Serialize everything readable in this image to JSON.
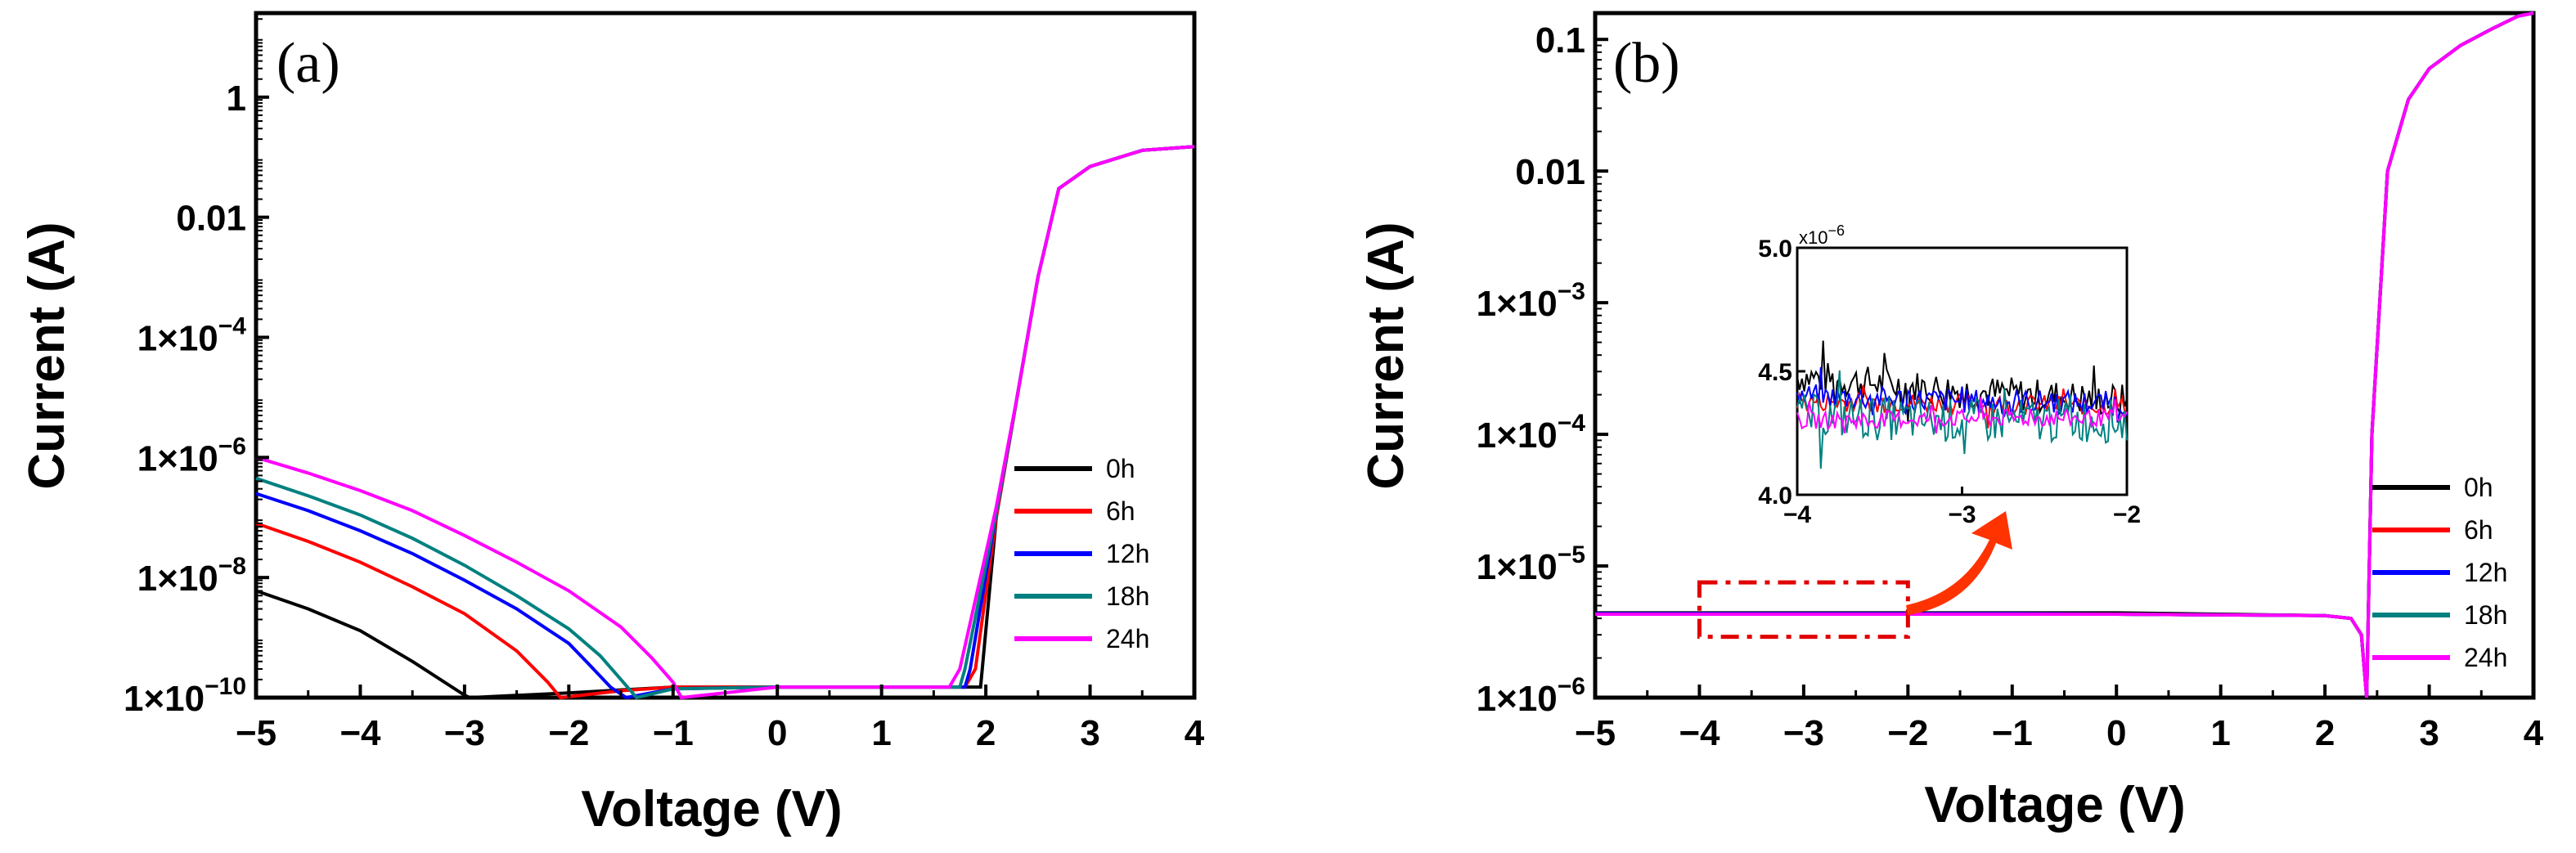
{
  "figure": {
    "panels": [
      {
        "id": "a",
        "label": "(a)"
      },
      {
        "id": "b",
        "label": "(b)"
      }
    ]
  },
  "colors": {
    "0h": "#000000",
    "6h": "#ff0000",
    "12h": "#0000ff",
    "18h": "#008080",
    "24h": "#ff00ff",
    "highlight_box": "#e00000",
    "arrow": "#ff3300"
  },
  "chart_data": [
    {
      "panel": "a",
      "type": "line",
      "title": "(a)",
      "xlabel": "Voltage (V)",
      "ylabel": "Current (A)",
      "xlim": [
        -5,
        4
      ],
      "ylim_log10": [
        -10,
        1.4
      ],
      "y_scale": "log",
      "x_ticks": [
        -5,
        -4,
        -3,
        -2,
        -1,
        0,
        1,
        2,
        3,
        4
      ],
      "x_tick_labels": [
        "−5",
        "−4",
        "−3",
        "−2",
        "−1",
        "0",
        "1",
        "2",
        "3",
        "4"
      ],
      "y_ticks_log10": [
        -10,
        -8,
        -6,
        -4,
        -2,
        0
      ],
      "y_tick_labels": [
        {
          "base": "1×10",
          "exp": "−10"
        },
        {
          "base": "1×10",
          "exp": "−8"
        },
        {
          "base": "1×10",
          "exp": "−6"
        },
        {
          "base": "1×10",
          "exp": "−4"
        },
        {
          "plain": "0.01"
        },
        {
          "plain": "1"
        }
      ],
      "legend": {
        "placement": "bottom-right",
        "entries": [
          "0h",
          "6h",
          "12h",
          "18h",
          "24h"
        ]
      },
      "series": [
        {
          "name": "0h",
          "x": [
            -5,
            -4.5,
            -4,
            -3.5,
            -3,
            -2.95,
            -2,
            -1,
            0,
            1,
            1.8,
            1.95,
            2.1,
            2.3,
            2.5,
            2.7,
            3.0,
            3.5,
            4.0
          ],
          "y": [
            6e-09,
            3e-09,
            1.3e-09,
            4e-10,
            1.1e-10,
            1e-10,
            1.2e-10,
            1.5e-10,
            1.5e-10,
            1.5e-10,
            1.5e-10,
            1.5e-10,
            1e-07,
            1e-05,
            0.001,
            0.03,
            0.07,
            0.13,
            0.15
          ]
        },
        {
          "name": "6h",
          "x": [
            -5,
            -4.5,
            -4,
            -3.5,
            -3,
            -2.5,
            -2.2,
            -2.08,
            -1.5,
            -1,
            0,
            1,
            1.8,
            1.9,
            2.1,
            2.3,
            2.5,
            2.7,
            3.0,
            3.5,
            4.0
          ],
          "y": [
            8e-08,
            4e-08,
            1.8e-08,
            7e-09,
            2.5e-09,
            6e-10,
            1.8e-10,
            1e-10,
            1.3e-10,
            1.5e-10,
            1.5e-10,
            1.5e-10,
            1.5e-10,
            3e-10,
            1e-07,
            1e-05,
            0.001,
            0.03,
            0.07,
            0.13,
            0.15
          ]
        },
        {
          "name": "12h",
          "x": [
            -5,
            -4.5,
            -4,
            -3.5,
            -3,
            -2.5,
            -2,
            -1.8,
            -1.6,
            -1.45,
            -1,
            0,
            1,
            1.8,
            1.85,
            2.1,
            2.3,
            2.5,
            2.7,
            3.0,
            3.5,
            4.0
          ],
          "y": [
            2.5e-07,
            1.3e-07,
            6e-08,
            2.5e-08,
            9e-09,
            3e-09,
            8e-10,
            3.5e-10,
            1.5e-10,
            1e-10,
            1.4e-10,
            1.5e-10,
            1.5e-10,
            1.5e-10,
            3e-10,
            1.2e-07,
            1e-05,
            0.001,
            0.03,
            0.07,
            0.13,
            0.15
          ]
        },
        {
          "name": "18h",
          "x": [
            -5,
            -4.5,
            -4,
            -3.5,
            -3,
            -2.5,
            -2,
            -1.7,
            -1.5,
            -1.35,
            -1,
            0,
            1,
            1.75,
            1.8,
            2.1,
            2.3,
            2.5,
            2.7,
            3.0,
            3.5,
            4.0
          ],
          "y": [
            4.5e-07,
            2.3e-07,
            1.1e-07,
            4.5e-08,
            1.6e-08,
            5e-09,
            1.4e-09,
            5e-10,
            2e-10,
            1e-10,
            1.4e-10,
            1.5e-10,
            1.5e-10,
            1.5e-10,
            3e-10,
            1.2e-07,
            1e-05,
            0.001,
            0.03,
            0.07,
            0.13,
            0.15
          ]
        },
        {
          "name": "24h",
          "x": [
            -5,
            -4.5,
            -4,
            -3.5,
            -3,
            -2.5,
            -2,
            -1.5,
            -1.2,
            -1.0,
            -0.92,
            0,
            1,
            1.65,
            1.75,
            2.1,
            2.3,
            2.5,
            2.7,
            3.0,
            3.5,
            4.0
          ],
          "y": [
            1e-06,
            5.5e-07,
            2.8e-07,
            1.3e-07,
            5e-08,
            1.8e-08,
            6e-09,
            1.5e-09,
            4.5e-10,
            1.8e-10,
            1e-10,
            1.5e-10,
            1.5e-10,
            1.5e-10,
            3e-10,
            1.5e-07,
            1e-05,
            0.001,
            0.03,
            0.07,
            0.13,
            0.15
          ]
        }
      ]
    },
    {
      "panel": "b",
      "type": "line",
      "title": "(b)",
      "xlabel": "Voltage (V)",
      "ylabel": "Current (A)",
      "xlim": [
        -5,
        4
      ],
      "ylim_log10": [
        -6,
        -0.8
      ],
      "y_scale": "log",
      "x_ticks": [
        -5,
        -4,
        -3,
        -2,
        -1,
        0,
        1,
        2,
        3,
        4
      ],
      "x_tick_labels": [
        "−5",
        "−4",
        "−3",
        "−2",
        "−1",
        "0",
        "1",
        "2",
        "3",
        "4"
      ],
      "y_ticks_log10": [
        -6,
        -5,
        -4,
        -3,
        -2,
        -1
      ],
      "y_tick_labels": [
        {
          "base": "1×10",
          "exp": "−6"
        },
        {
          "base": "1×10",
          "exp": "−5"
        },
        {
          "base": "1×10",
          "exp": "−4"
        },
        {
          "base": "1×10",
          "exp": "−3"
        },
        {
          "plain": "0.01"
        },
        {
          "plain": "0.1"
        }
      ],
      "legend": {
        "placement": "bottom-right",
        "entries": [
          "0h",
          "6h",
          "12h",
          "18h",
          "24h"
        ]
      },
      "series": [
        {
          "name": "0h",
          "x": [
            -5,
            -3,
            -1,
            0,
            1,
            2.0,
            2.25,
            2.35,
            2.4,
            2.45,
            2.6,
            2.8,
            3.0,
            3.3,
            3.6,
            3.85,
            4.0
          ],
          "y": [
            4.4e-06,
            4.4e-06,
            4.4e-06,
            4.4e-06,
            4.3e-06,
            4.2e-06,
            4e-06,
            3e-06,
            1e-06,
            0.0001,
            0.01,
            0.035,
            0.06,
            0.09,
            0.12,
            0.15,
            0.16
          ]
        },
        {
          "name": "6h",
          "x": [
            -5,
            -3,
            -1,
            0,
            1,
            2.0,
            2.25,
            2.35,
            2.4,
            2.45,
            2.6,
            2.8,
            3.0,
            3.3,
            3.6,
            3.85,
            4.0
          ],
          "y": [
            4.3e-06,
            4.3e-06,
            4.3e-06,
            4.3e-06,
            4.25e-06,
            4.2e-06,
            4e-06,
            3e-06,
            1e-06,
            0.0001,
            0.01,
            0.035,
            0.06,
            0.09,
            0.12,
            0.15,
            0.16
          ]
        },
        {
          "name": "12h",
          "x": [
            -5,
            -3,
            -1,
            0,
            1,
            2.0,
            2.25,
            2.35,
            2.4,
            2.45,
            2.6,
            2.8,
            3.0,
            3.3,
            3.6,
            3.85,
            4.0
          ],
          "y": [
            4.35e-06,
            4.35e-06,
            4.35e-06,
            4.3e-06,
            4.25e-06,
            4.2e-06,
            4e-06,
            3e-06,
            1e-06,
            0.0001,
            0.01,
            0.035,
            0.06,
            0.09,
            0.12,
            0.15,
            0.16
          ]
        },
        {
          "name": "18h",
          "x": [
            -5,
            -3,
            -1,
            0,
            1,
            2.0,
            2.25,
            2.35,
            2.4,
            2.45,
            2.6,
            2.8,
            3.0,
            3.3,
            3.6,
            3.85,
            4.0
          ],
          "y": [
            4.3e-06,
            4.3e-06,
            4.3e-06,
            4.3e-06,
            4.25e-06,
            4.2e-06,
            4e-06,
            3e-06,
            1e-06,
            0.0001,
            0.01,
            0.035,
            0.06,
            0.09,
            0.12,
            0.15,
            0.16
          ]
        },
        {
          "name": "24h",
          "x": [
            -5,
            -3,
            -1,
            0,
            1,
            2.0,
            2.25,
            2.35,
            2.4,
            2.45,
            2.6,
            2.8,
            3.0,
            3.3,
            3.6,
            3.85,
            4.0
          ],
          "y": [
            4.3e-06,
            4.3e-06,
            4.3e-06,
            4.3e-06,
            4.25e-06,
            4.2e-06,
            4e-06,
            3e-06,
            1e-06,
            0.0001,
            0.01,
            0.035,
            0.06,
            0.09,
            0.12,
            0.15,
            0.16
          ]
        }
      ],
      "highlight_region": {
        "x": [
          -4,
          -2
        ],
        "y": [
          2.9e-06,
          7.5e-06
        ]
      },
      "inset": {
        "type": "line",
        "xlim": [
          -4,
          -2
        ],
        "ylim": [
          4.0,
          5.0
        ],
        "y_multiplier": {
          "base": "x10",
          "exp": "−6"
        },
        "x_ticks": [
          -4,
          -3,
          -2
        ],
        "x_tick_labels": [
          "−4",
          "−3",
          "−2"
        ],
        "y_ticks": [
          4.0,
          4.5,
          5.0
        ],
        "y_tick_labels": [
          "4.0",
          "4.5",
          "5.0"
        ],
        "series_mean": [
          {
            "name": "0h",
            "values": [
              4.48,
              4.42,
              4.38
            ]
          },
          {
            "name": "6h",
            "values": [
              4.38,
              4.37,
              4.36
            ]
          },
          {
            "name": "12h",
            "values": [
              4.4,
              4.38,
              4.37
            ]
          },
          {
            "name": "18h",
            "values": [
              4.32,
              4.3,
              4.3
            ]
          },
          {
            "name": "24h",
            "values": [
              4.3,
              4.31,
              4.31
            ]
          }
        ]
      }
    }
  ]
}
